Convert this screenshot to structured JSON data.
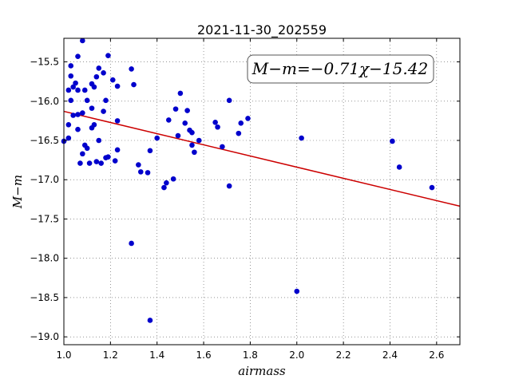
{
  "chart_data": {
    "type": "scatter",
    "title": "2021-11-30_202559",
    "xlabel": "airmass",
    "ylabel": "M−m",
    "xlim": [
      1.0,
      2.7
    ],
    "ylim": [
      -19.1,
      -15.2
    ],
    "x_ticks": [
      "1.0",
      "1.2",
      "1.4",
      "1.6",
      "1.8",
      "2.0",
      "2.2",
      "2.4",
      "2.6"
    ],
    "y_ticks": [
      "−15.5",
      "−16.0",
      "−16.5",
      "−17.0",
      "−17.5",
      "−18.0",
      "−18.5",
      "−19.0"
    ],
    "grid": true,
    "annotation": "M−m=−0.71χ−15.42",
    "fit_line": {
      "slope": -0.71,
      "intercept": -15.42,
      "color": "#cc0000"
    },
    "point_color": "#0000cc",
    "points": [
      [
        1.0,
        -16.51
      ],
      [
        1.02,
        -16.3
      ],
      [
        1.02,
        -16.47
      ],
      [
        1.02,
        -15.86
      ],
      [
        1.03,
        -15.55
      ],
      [
        1.03,
        -15.68
      ],
      [
        1.03,
        -15.99
      ],
      [
        1.04,
        -15.82
      ],
      [
        1.04,
        -16.18
      ],
      [
        1.05,
        -15.77
      ],
      [
        1.06,
        -16.17
      ],
      [
        1.06,
        -15.86
      ],
      [
        1.06,
        -16.36
      ],
      [
        1.06,
        -15.43
      ],
      [
        1.07,
        -16.79
      ],
      [
        1.08,
        -16.67
      ],
      [
        1.08,
        -16.15
      ],
      [
        1.08,
        -15.23
      ],
      [
        1.09,
        -16.56
      ],
      [
        1.09,
        -15.86
      ],
      [
        1.1,
        -15.99
      ],
      [
        1.1,
        -16.6
      ],
      [
        1.11,
        -16.79
      ],
      [
        1.12,
        -15.78
      ],
      [
        1.12,
        -16.09
      ],
      [
        1.12,
        -16.34
      ],
      [
        1.13,
        -15.82
      ],
      [
        1.13,
        -16.3
      ],
      [
        1.14,
        -15.69
      ],
      [
        1.14,
        -16.77
      ],
      [
        1.15,
        -15.58
      ],
      [
        1.15,
        -16.5
      ],
      [
        1.16,
        -16.79
      ],
      [
        1.17,
        -15.64
      ],
      [
        1.17,
        -16.13
      ],
      [
        1.18,
        -15.99
      ],
      [
        1.18,
        -16.72
      ],
      [
        1.19,
        -15.42
      ],
      [
        1.19,
        -16.71
      ],
      [
        1.21,
        -15.73
      ],
      [
        1.22,
        -16.76
      ],
      [
        1.23,
        -15.81
      ],
      [
        1.23,
        -16.62
      ],
      [
        1.23,
        -16.25
      ],
      [
        1.29,
        -15.59
      ],
      [
        1.29,
        -17.81
      ],
      [
        1.3,
        -15.79
      ],
      [
        1.32,
        -16.81
      ],
      [
        1.33,
        -16.9
      ],
      [
        1.36,
        -16.91
      ],
      [
        1.37,
        -16.63
      ],
      [
        1.37,
        -18.79
      ],
      [
        1.4,
        -16.47
      ],
      [
        1.43,
        -17.1
      ],
      [
        1.44,
        -17.04
      ],
      [
        1.45,
        -16.24
      ],
      [
        1.47,
        -16.99
      ],
      [
        1.48,
        -16.1
      ],
      [
        1.5,
        -15.9
      ],
      [
        1.52,
        -16.28
      ],
      [
        1.53,
        -16.12
      ],
      [
        1.54,
        -16.37
      ],
      [
        1.55,
        -16.4
      ],
      [
        1.55,
        -16.56
      ],
      [
        1.56,
        -16.65
      ],
      [
        1.58,
        -16.5
      ],
      [
        1.65,
        -16.27
      ],
      [
        1.66,
        -16.33
      ],
      [
        1.68,
        -16.58
      ],
      [
        1.71,
        -15.99
      ],
      [
        1.71,
        -17.08
      ],
      [
        1.75,
        -16.41
      ],
      [
        1.76,
        -16.28
      ],
      [
        1.79,
        -16.22
      ],
      [
        2.0,
        -18.42
      ],
      [
        2.02,
        -16.47
      ],
      [
        2.41,
        -16.51
      ],
      [
        2.44,
        -16.84
      ],
      [
        2.58,
        -17.1
      ],
      [
        1.49,
        -16.44
      ]
    ]
  }
}
